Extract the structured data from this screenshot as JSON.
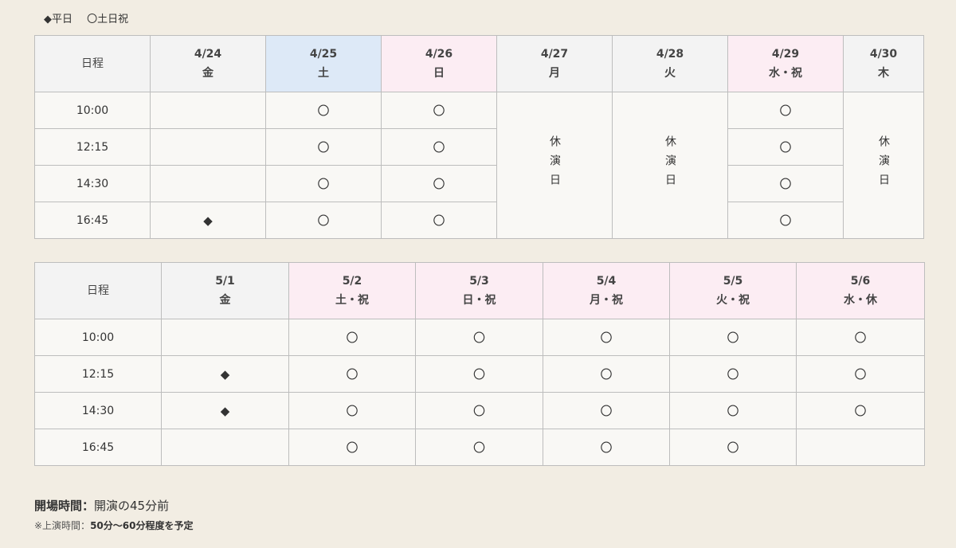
{
  "legend": {
    "weekday": "◆平日",
    "holiday": "〇土日祝"
  },
  "header_label": "日程",
  "times": [
    "10:00",
    "12:15",
    "14:30",
    "16:45"
  ],
  "rest_label": "休演日",
  "colors": {
    "weekend": "#dde9f7",
    "holiday": "#fcedf3",
    "header": "#f3f3f3"
  },
  "tables": [
    {
      "days": [
        {
          "date": "4/24",
          "dow": "金",
          "type": "weekday",
          "slots": [
            "",
            "",
            "",
            "◆"
          ]
        },
        {
          "date": "4/25",
          "dow": "土",
          "type": "weekend",
          "slots": [
            "〇",
            "〇",
            "〇",
            "〇"
          ]
        },
        {
          "date": "4/26",
          "dow": "日",
          "type": "holiday",
          "slots": [
            "〇",
            "〇",
            "〇",
            "〇"
          ]
        },
        {
          "date": "4/27",
          "dow": "月",
          "type": "weekday",
          "rest": true
        },
        {
          "date": "4/28",
          "dow": "火",
          "type": "weekday",
          "rest": true
        },
        {
          "date": "4/29",
          "dow": "水・祝",
          "type": "holiday",
          "slots": [
            "〇",
            "〇",
            "〇",
            "〇"
          ]
        },
        {
          "date": "4/30",
          "dow": "木",
          "type": "weekday",
          "rest": true
        }
      ]
    },
    {
      "days": [
        {
          "date": "5/1",
          "dow": "金",
          "type": "weekday",
          "slots": [
            "",
            "◆",
            "◆",
            ""
          ]
        },
        {
          "date": "5/2",
          "dow": "土・祝",
          "type": "holiday",
          "slots": [
            "〇",
            "〇",
            "〇",
            "〇"
          ]
        },
        {
          "date": "5/3",
          "dow": "日・祝",
          "type": "holiday",
          "slots": [
            "〇",
            "〇",
            "〇",
            "〇"
          ]
        },
        {
          "date": "5/4",
          "dow": "月・祝",
          "type": "holiday",
          "slots": [
            "〇",
            "〇",
            "〇",
            "〇"
          ]
        },
        {
          "date": "5/5",
          "dow": "火・祝",
          "type": "holiday",
          "slots": [
            "〇",
            "〇",
            "〇",
            "〇"
          ]
        },
        {
          "date": "5/6",
          "dow": "水・休",
          "type": "holiday",
          "slots": [
            "〇",
            "〇",
            "〇",
            ""
          ]
        }
      ]
    }
  ],
  "notes": {
    "open_label": "開場時間：",
    "open_value": "開演の45分前",
    "runtime_label": "※上演時間：",
    "runtime_value": "50分〜60分程度を予定"
  }
}
